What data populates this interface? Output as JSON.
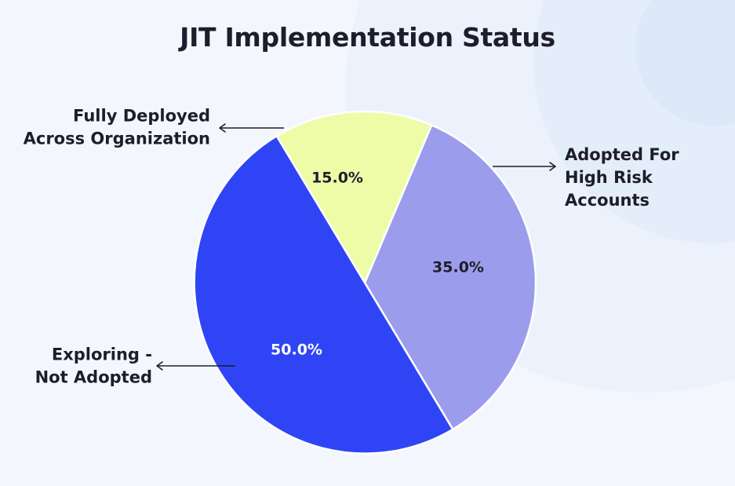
{
  "chart_data": {
    "type": "pie",
    "title": "JIT Implementation Status",
    "slices": [
      {
        "label": "Adopted For High Risk Accounts",
        "value": 35.0,
        "display": "35.0%",
        "color": "#9c9cec",
        "text_color": "#1d1d2b",
        "label_lines": [
          "Adopted For",
          "High Risk",
          "Accounts"
        ]
      },
      {
        "label": "Exploring - Not Adopted",
        "value": 50.0,
        "display": "50.0%",
        "color": "#2f45f5",
        "text_color": "#ffffff",
        "label_lines": [
          "Exploring -",
          "Not Adopted"
        ]
      },
      {
        "label": "Fully Deployed Across Organization",
        "value": 15.0,
        "display": "15.0%",
        "color": "#eefca8",
        "text_color": "#1d1d2b",
        "label_lines": [
          "Fully Deployed",
          "Across Organization"
        ]
      }
    ]
  }
}
